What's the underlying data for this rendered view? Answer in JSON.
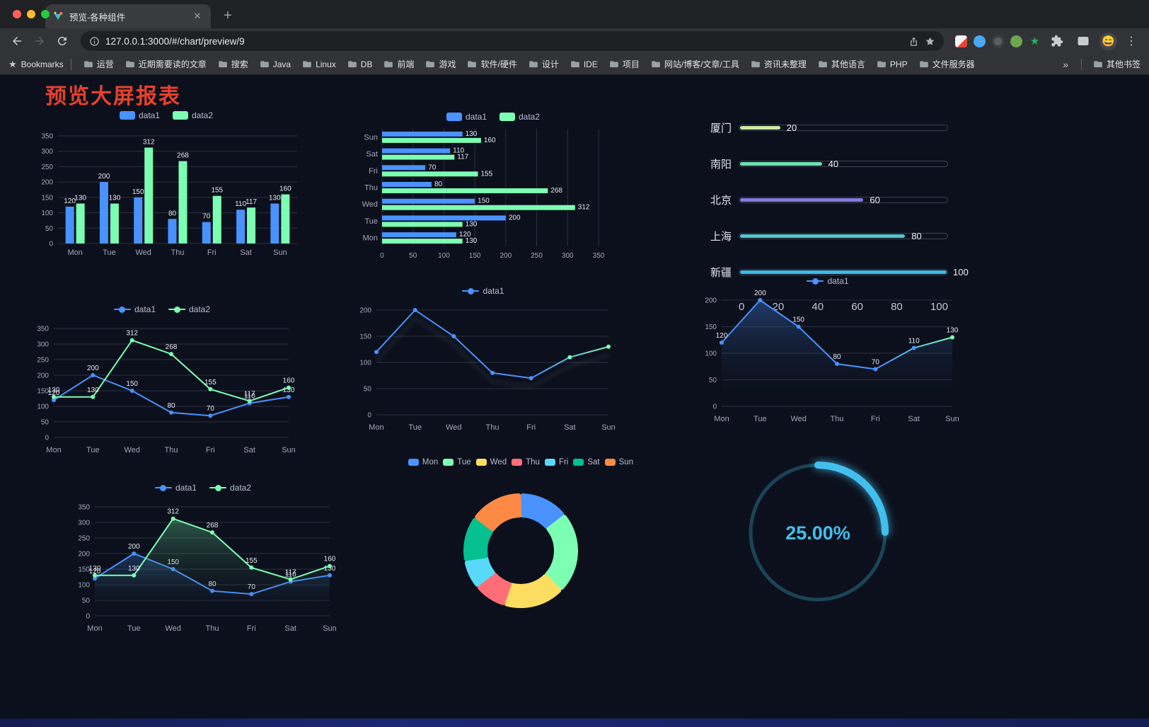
{
  "window": {
    "tab_title": "预览-各种组件",
    "url": "127.0.0.1:3000/#/chart/preview/9",
    "avatar_emoji": "😄"
  },
  "icons": {
    "close": "✕",
    "new_tab": "+",
    "kebab": "⋮",
    "bookmarks_star": "★",
    "overflow_chevron": "»",
    "ext_star": "★"
  },
  "bookmarks": {
    "label": "Bookmarks",
    "folders": [
      "运营",
      "近期需要读的文章",
      "搜索",
      "Java",
      "Linux",
      "DB",
      "前端",
      "游戏",
      "软件/硬件",
      "设计",
      "IDE",
      "项目",
      "网站/博客/文章/工具",
      "资讯未整理",
      "其他语言",
      "PHP",
      "文件服务器"
    ],
    "other_label": "其他书签"
  },
  "page": {
    "title": "预览大屏报表"
  },
  "palette": {
    "data1": "#4992ff",
    "data2": "#7cffb2",
    "axis": "#a2a6b8",
    "grid": "#2d3040",
    "title_red": "#e8412b",
    "gauge_cyan": "#41c0ee"
  },
  "chart_data": [
    {
      "type": "bar",
      "categories": [
        "Mon",
        "Tue",
        "Wed",
        "Thu",
        "Fri",
        "Sat",
        "Sun"
      ],
      "series": [
        {
          "name": "data1",
          "color": "#4992ff",
          "values": [
            120,
            200,
            150,
            80,
            70,
            110,
            130
          ]
        },
        {
          "name": "data2",
          "color": "#7cffb2",
          "values": [
            130,
            130,
            312,
            268,
            155,
            117,
            160
          ]
        }
      ],
      "ylim": [
        0,
        350
      ],
      "yticks": [
        0,
        50,
        100,
        150,
        200,
        250,
        300,
        350
      ],
      "legend_position": "top",
      "grid": true
    },
    {
      "type": "bar",
      "orientation": "horizontal",
      "categories": [
        "Mon",
        "Tue",
        "Wed",
        "Thu",
        "Fri",
        "Sat",
        "Sun"
      ],
      "series": [
        {
          "name": "data1",
          "color": "#4992ff",
          "values": [
            120,
            200,
            150,
            80,
            70,
            110,
            130
          ]
        },
        {
          "name": "data2",
          "color": "#7cffb2",
          "values": [
            130,
            130,
            312,
            268,
            155,
            117,
            160
          ]
        }
      ],
      "xlim": [
        0,
        350
      ],
      "xticks": [
        0,
        50,
        100,
        150,
        200,
        250,
        300,
        350
      ],
      "legend_position": "top",
      "grid": true
    },
    {
      "type": "bar",
      "style": "capsule-progress",
      "max": 100,
      "xticks": [
        0,
        20,
        40,
        60,
        80,
        100
      ],
      "items": [
        {
          "label": "厦门",
          "value": 20,
          "color": "#cde8a6"
        },
        {
          "label": "南阳",
          "value": 40,
          "color": "#6fe0b2"
        },
        {
          "label": "北京",
          "value": 60,
          "color": "#8678e0"
        },
        {
          "label": "上海",
          "value": 80,
          "color": "#55c4cd"
        },
        {
          "label": "新疆",
          "value": 100,
          "color": "#3fb9e6"
        }
      ]
    },
    {
      "type": "line",
      "categories": [
        "Mon",
        "Tue",
        "Wed",
        "Thu",
        "Fri",
        "Sat",
        "Sun"
      ],
      "series": [
        {
          "name": "data1",
          "color": "#4992ff",
          "values": [
            120,
            200,
            150,
            80,
            70,
            110,
            130
          ]
        },
        {
          "name": "data2",
          "color": "#7cffb2",
          "values": [
            130,
            130,
            312,
            268,
            155,
            117,
            160
          ]
        }
      ],
      "ylim": [
        0,
        350
      ],
      "yticks": [
        0,
        50,
        100,
        150,
        200,
        250,
        300,
        350
      ],
      "value_labels": true,
      "legend_position": "top"
    },
    {
      "type": "line",
      "categories": [
        "Mon",
        "Tue",
        "Wed",
        "Thu",
        "Fri",
        "Sat",
        "Sun"
      ],
      "series": [
        {
          "name": "data1",
          "color": "#4992ff",
          "values": [
            120,
            200,
            150,
            80,
            70,
            110,
            130
          ]
        }
      ],
      "ylim": [
        0,
        200
      ],
      "yticks": [
        0,
        50,
        100,
        150,
        200
      ],
      "value_labels": false,
      "gradient_end_color": "#7cffb2",
      "legend_position": "top"
    },
    {
      "type": "area",
      "categories": [
        "Mon",
        "Tue",
        "Wed",
        "Thu",
        "Fri",
        "Sat",
        "Sun"
      ],
      "series": [
        {
          "name": "data1",
          "color": "#4992ff",
          "values": [
            120,
            200,
            150,
            80,
            70,
            110,
            130
          ]
        }
      ],
      "ylim": [
        0,
        200
      ],
      "yticks": [
        0,
        50,
        100,
        150,
        200
      ],
      "value_labels": true,
      "gradient_end_color": "#7cffb2",
      "legend_position": "top"
    },
    {
      "type": "area",
      "categories": [
        "Mon",
        "Tue",
        "Wed",
        "Thu",
        "Fri",
        "Sat",
        "Sun"
      ],
      "series": [
        {
          "name": "data1",
          "color": "#4992ff",
          "values": [
            120,
            200,
            150,
            80,
            70,
            110,
            130
          ]
        },
        {
          "name": "data2",
          "color": "#7cffb2",
          "values": [
            130,
            130,
            312,
            268,
            155,
            117,
            160
          ]
        }
      ],
      "ylim": [
        0,
        350
      ],
      "yticks": [
        0,
        50,
        100,
        150,
        200,
        250,
        300,
        350
      ],
      "value_labels": true,
      "legend_position": "top"
    },
    {
      "type": "pie",
      "shape": "donut",
      "legend": [
        "Mon",
        "Tue",
        "Wed",
        "Thu",
        "Fri",
        "Sat",
        "Sun"
      ],
      "values": [
        120,
        200,
        150,
        80,
        70,
        110,
        130
      ],
      "colors": [
        "#4992ff",
        "#7cffb2",
        "#fddd60",
        "#ff6e76",
        "#58d9f9",
        "#05c091",
        "#ff8a45"
      ],
      "legend_position": "top"
    },
    {
      "type": "gauge",
      "value": 25,
      "display": "25.00%",
      "color": "#41c0ee",
      "track_color": "#1a4457"
    }
  ]
}
